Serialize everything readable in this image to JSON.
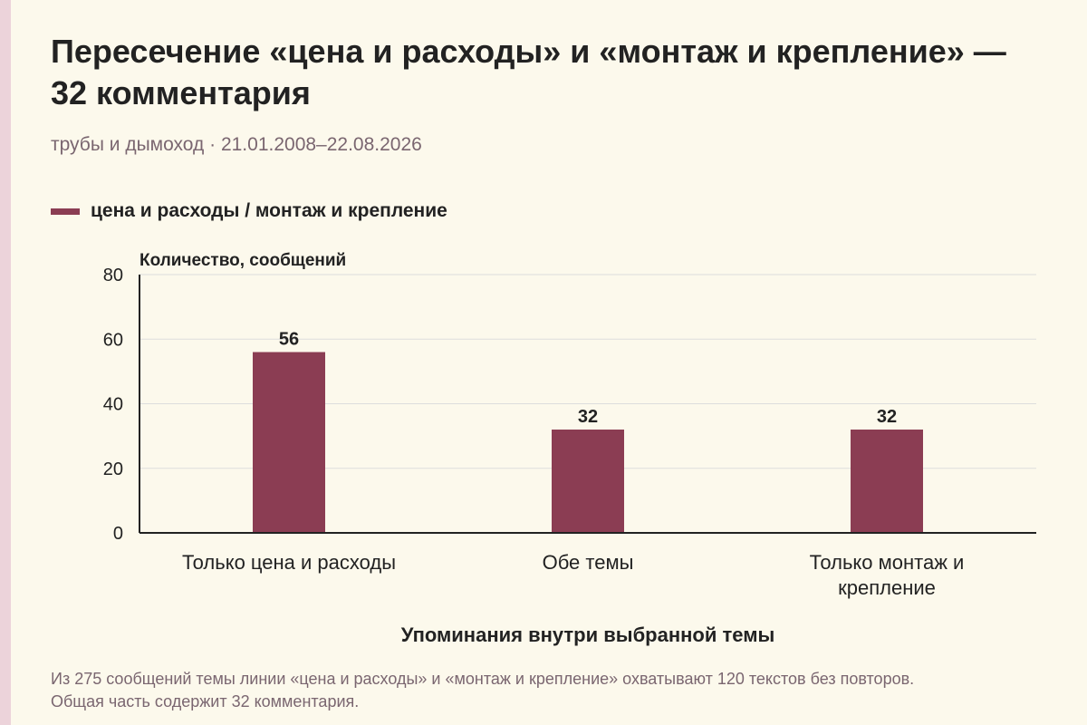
{
  "title": "Пересечение «цена и расходы» и «монтаж и крепление» — 32 комментария",
  "subtitle": "трубы и дымоход · 21.01.2008–22.08.2026",
  "note": "Из 275 сообщений темы линии «цена и расходы» и «монтаж и крепление» охватывают 120 текстов без повторов. Общая часть содержит 32 комментария.",
  "colors": {
    "bar": "#8b3d53",
    "grid": "#dddddd",
    "axis": "#222222"
  },
  "chart_data": {
    "type": "bar",
    "categories": [
      [
        "Только цена и расходы"
      ],
      [
        "Обе темы"
      ],
      [
        "Только монтаж и",
        "крепление"
      ]
    ],
    "series": [
      {
        "name": "цена и расходы / монтаж и крепление",
        "values": [
          56,
          32,
          32
        ]
      }
    ],
    "data_labels": [
      "56",
      "32",
      "32"
    ],
    "yticks": [
      "0",
      "20",
      "40",
      "60",
      "80"
    ],
    "ylim": [
      0,
      80
    ],
    "ylabel": "Количество, сообщений",
    "xlabel": "Упоминания внутри выбранной темы",
    "grid": true,
    "legend_position": "top-left"
  }
}
